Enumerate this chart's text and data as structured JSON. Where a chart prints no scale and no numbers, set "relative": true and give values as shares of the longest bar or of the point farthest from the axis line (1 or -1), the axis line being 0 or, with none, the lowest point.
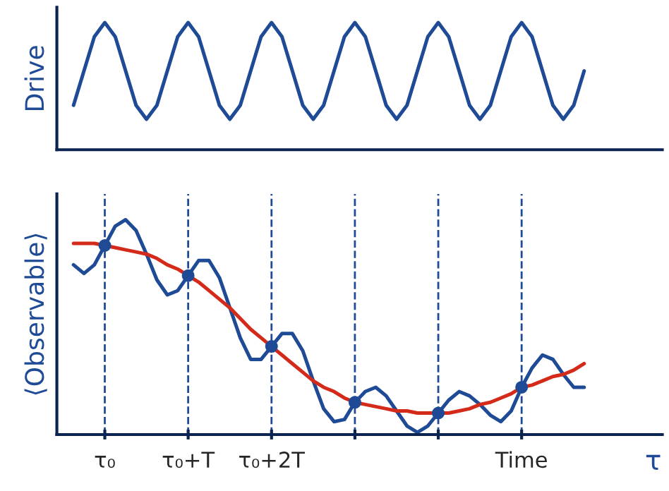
{
  "chart_data": [
    {
      "type": "line",
      "ylabel": "Drive",
      "relative": true,
      "grid": false,
      "legend": false,
      "line_style": "solid",
      "marker": "none",
      "categories": [
        null,
        null,
        null,
        null,
        null,
        null,
        null,
        null,
        null,
        null,
        null,
        null,
        null,
        null,
        null,
        null,
        null,
        null,
        null,
        null,
        null,
        null,
        null,
        null,
        null,
        null,
        null,
        null,
        null,
        null,
        null,
        null,
        null,
        null,
        null,
        null,
        null,
        null,
        null,
        null,
        null,
        null,
        null,
        null,
        null,
        null,
        null,
        null,
        null,
        null
      ],
      "series": [
        {
          "color": "#1f4a96",
          "values": [
            0.35,
            0.62,
            0.89,
            1.0,
            0.89,
            0.62,
            0.35,
            0.24,
            0.35,
            0.62,
            0.89,
            1.0,
            0.89,
            0.62,
            0.35,
            0.24,
            0.35,
            0.62,
            0.89,
            1.0,
            0.89,
            0.62,
            0.35,
            0.24,
            0.35,
            0.62,
            0.89,
            1.0,
            0.89,
            0.62,
            0.35,
            0.24,
            0.35,
            0.62,
            0.89,
            1.0,
            0.89,
            0.62,
            0.35,
            0.24,
            0.35,
            0.62,
            0.89,
            1.0,
            0.89,
            0.62,
            0.35,
            0.24,
            0.35,
            0.62
          ]
        }
      ]
    },
    {
      "type": "line",
      "ylabel": "⟨Observable⟩",
      "xlabel": "τ",
      "relative": true,
      "grid": "x",
      "legend": false,
      "line_style": "solid",
      "categories": [
        null,
        null,
        null,
        "τ₀",
        null,
        null,
        null,
        null,
        null,
        null,
        null,
        "τ₀+T",
        null,
        null,
        null,
        null,
        null,
        null,
        null,
        "τ₀+2T",
        null,
        null,
        null,
        null,
        null,
        null,
        null,
        null,
        null,
        null,
        null,
        null,
        null,
        null,
        null,
        null,
        null,
        null,
        null,
        null,
        null,
        null,
        null,
        "Time",
        null,
        null,
        null,
        null,
        null,
        null
      ],
      "series": [
        {
          "type": "line",
          "color": "#1f4a96",
          "values": [
            0.79,
            0.75,
            0.79,
            0.88,
            0.97,
            1.0,
            0.95,
            0.84,
            0.72,
            0.65,
            0.67,
            0.74,
            0.81,
            0.81,
            0.73,
            0.59,
            0.45,
            0.35,
            0.35,
            0.41,
            0.47,
            0.47,
            0.39,
            0.25,
            0.12,
            0.06,
            0.07,
            0.15,
            0.2,
            0.22,
            0.18,
            0.11,
            0.04,
            0.01,
            0.04,
            0.1,
            0.16,
            0.2,
            0.18,
            0.14,
            0.09,
            0.06,
            0.11,
            0.22,
            0.31,
            0.37,
            0.35,
            0.28,
            0.22,
            0.22
          ]
        },
        {
          "type": "line",
          "color": "#d42a1a",
          "values": [
            0.89,
            0.89,
            0.89,
            0.88,
            0.87,
            0.86,
            0.85,
            0.84,
            0.82,
            0.79,
            0.77,
            0.74,
            0.71,
            0.67,
            0.63,
            0.59,
            0.54,
            0.49,
            0.45,
            0.41,
            0.37,
            0.33,
            0.29,
            0.25,
            0.22,
            0.2,
            0.17,
            0.15,
            0.14,
            0.13,
            0.12,
            0.11,
            0.11,
            0.1,
            0.1,
            0.1,
            0.1,
            0.11,
            0.12,
            0.14,
            0.15,
            0.17,
            0.19,
            0.22,
            0.23,
            0.25,
            0.27,
            0.28,
            0.3,
            0.33
          ]
        },
        {
          "type": "scatter",
          "color": "#1f4a96",
          "marker": "circle",
          "values": [
            null,
            null,
            null,
            0.88,
            null,
            null,
            null,
            null,
            null,
            null,
            null,
            0.74,
            null,
            null,
            null,
            null,
            null,
            null,
            null,
            0.41,
            null,
            null,
            null,
            null,
            null,
            null,
            null,
            0.15,
            null,
            null,
            null,
            null,
            null,
            null,
            null,
            0.1,
            null,
            null,
            null,
            null,
            null,
            null,
            null,
            0.22,
            null,
            null,
            null,
            null,
            null,
            null
          ]
        }
      ]
    }
  ]
}
